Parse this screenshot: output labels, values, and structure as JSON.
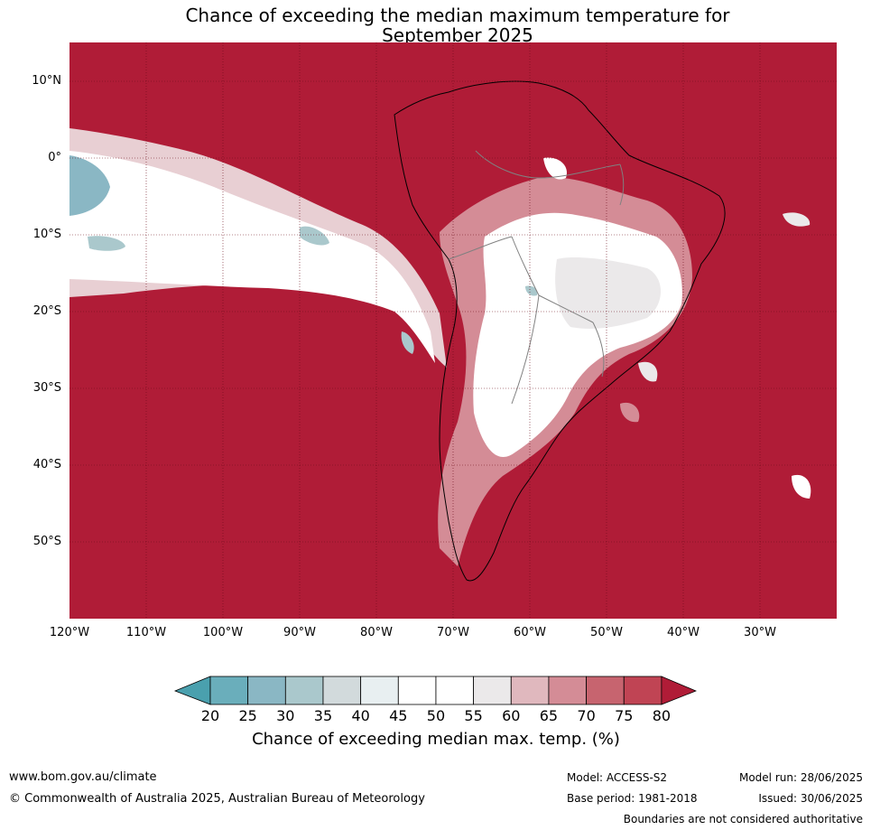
{
  "title": {
    "line1": "Chance of exceeding the median maximum temperature for",
    "line2": "September 2025"
  },
  "map": {
    "region": "South America",
    "fill_color_dominant": "#b01c37",
    "lat_labels": [
      "10°N",
      "0°",
      "10°S",
      "20°S",
      "30°S",
      "40°S",
      "50°S"
    ],
    "lon_labels": [
      "120°W",
      "110°W",
      "100°W",
      "90°W",
      "80°W",
      "70°W",
      "60°W",
      "50°W",
      "40°W",
      "30°W"
    ]
  },
  "colorbar": {
    "ticks": [
      "20",
      "25",
      "30",
      "35",
      "40",
      "45",
      "50",
      "55",
      "60",
      "65",
      "70",
      "75",
      "80"
    ],
    "colors": [
      "#4aa0ae",
      "#6aaebb",
      "#8ab7c4",
      "#aac8cc",
      "#d2dadc",
      "#e8eff1",
      "#ffffff",
      "#ffffff",
      "#ebe9ea",
      "#e0b8be",
      "#d48c96",
      "#c7646f",
      "#c04454",
      "#b01c37"
    ],
    "label": "Chance of exceeding median max. temp. (%)"
  },
  "footer": {
    "website": "www.bom.gov.au/climate",
    "copyright": "© Commonwealth of Australia 2025, Australian Bureau of Meteorology",
    "model": "Model: ACCESS-S2",
    "base_period": "Base period: 1981-2018",
    "model_run": "Model run: 28/06/2025",
    "issued": "Issued: 30/06/2025",
    "disclaimer": "Boundaries are not considered authoritative"
  }
}
